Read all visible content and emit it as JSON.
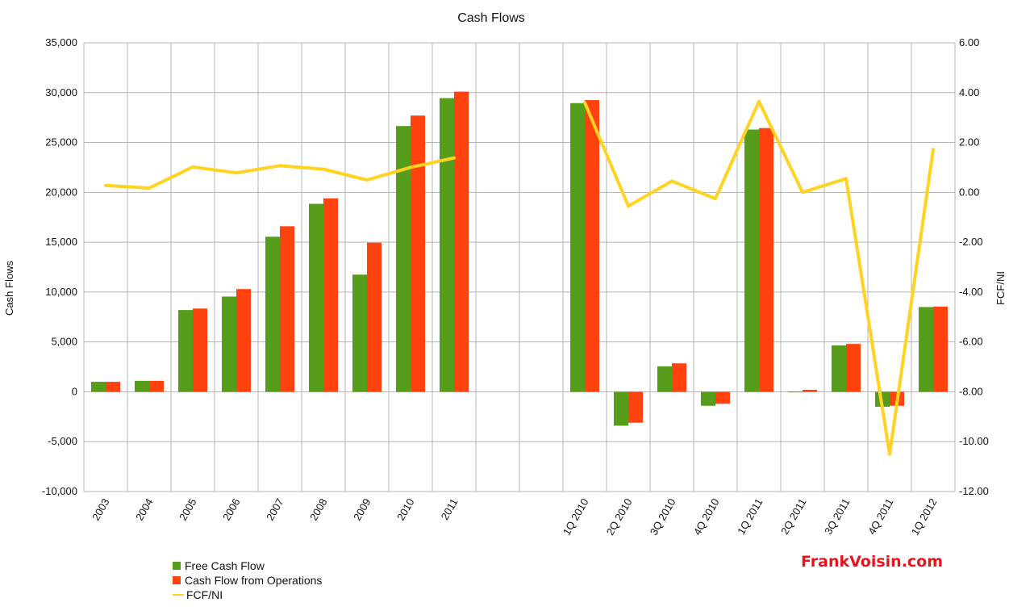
{
  "chart_data": {
    "type": "bar",
    "title": "Cash Flows",
    "ylabel": "Cash Flows",
    "y2label": "FCF/NI",
    "ylim": [
      -10000,
      35000
    ],
    "yticks": [
      "35,000",
      "30,000",
      "25,000",
      "20,000",
      "15,000",
      "10,000",
      "5,000",
      "0",
      "-5,000",
      "-10,000"
    ],
    "y2lim": [
      -12,
      6
    ],
    "y2ticks": [
      "6.00",
      "4.00",
      "2.00",
      "0.00",
      "-2.00",
      "-4.00",
      "-6.00",
      "-8.00",
      "-10.00",
      "-12.00"
    ],
    "categories": [
      "2003",
      "2004",
      "2005",
      "2006",
      "2007",
      "2008",
      "2009",
      "2010",
      "2011",
      "",
      "",
      "1Q 2010",
      "2Q 2010",
      "3Q 2010",
      "4Q 2010",
      "1Q 2011",
      "2Q 2011",
      "3Q 2011",
      "4Q 2011",
      "1Q 2012"
    ],
    "series": [
      {
        "name": "Free Cash Flow",
        "type": "bar",
        "axis": "left",
        "color": "#579d1c",
        "values": [
          1000,
          1100,
          8200,
          9550,
          15550,
          18850,
          11750,
          26650,
          29450,
          null,
          null,
          28950,
          -3400,
          2550,
          -1400,
          26300,
          20,
          4650,
          -1500,
          8500
        ]
      },
      {
        "name": "Cash Flow from Operations",
        "type": "bar",
        "axis": "left",
        "color": "#ff420e",
        "values": [
          1000,
          1100,
          8350,
          10300,
          16600,
          19400,
          14950,
          27700,
          30100,
          null,
          null,
          29250,
          -3100,
          2850,
          -1200,
          26450,
          200,
          4800,
          -1400,
          8550
        ]
      },
      {
        "name": "FCF/NI",
        "type": "line",
        "axis": "right",
        "color": "#ffd320",
        "values": [
          0.28,
          0.17,
          1.02,
          0.78,
          1.07,
          0.93,
          0.5,
          1.0,
          1.38,
          null,
          null,
          3.6,
          -0.55,
          0.45,
          -0.25,
          3.65,
          0.0,
          0.55,
          -10.5,
          1.72
        ]
      }
    ],
    "grid": true,
    "legend_position": "bottom-left"
  },
  "watermark": "FrankVoisin.com"
}
